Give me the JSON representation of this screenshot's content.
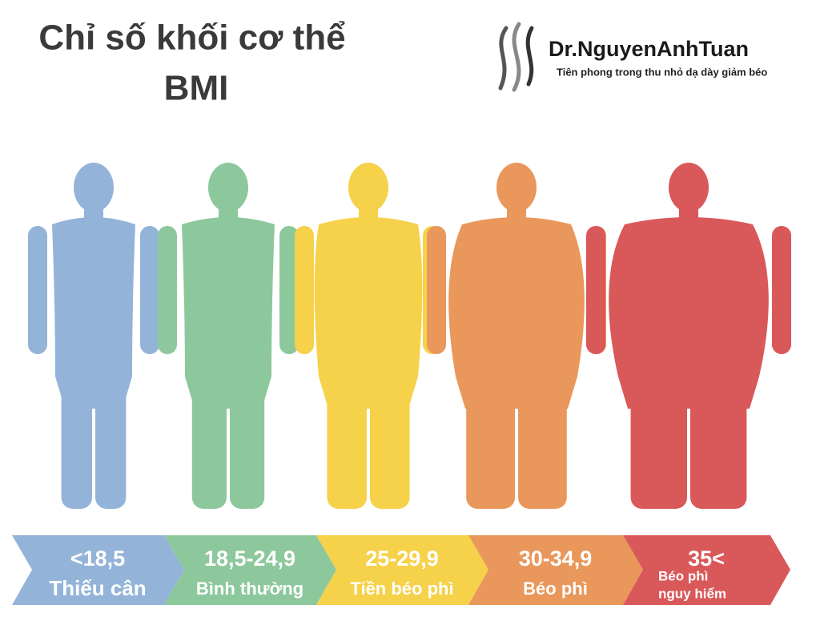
{
  "header": {
    "title": "Chỉ số khối cơ thể",
    "subtitle": "BMI"
  },
  "logo": {
    "name": "Dr.NguyenAnhTuan",
    "tagline": "Tiên phong trong thu nhỏ dạ dày giảm béo"
  },
  "categories": [
    {
      "range": "<18,5",
      "label": [
        "Thiếu cân"
      ],
      "color": "#94b3d9"
    },
    {
      "range": "18,5-24,9",
      "label": [
        "Bình thường"
      ],
      "color": "#8dc89d"
    },
    {
      "range": "25-29,9",
      "label": [
        "Tiền béo phì"
      ],
      "color": "#f6d14a"
    },
    {
      "range": "30-34,9",
      "label": [
        "Béo phì"
      ],
      "color": "#e9975a"
    },
    {
      "range": "35<",
      "label": [
        "Béo phì",
        "nguy hiểm"
      ],
      "color": "#d9585a"
    }
  ]
}
